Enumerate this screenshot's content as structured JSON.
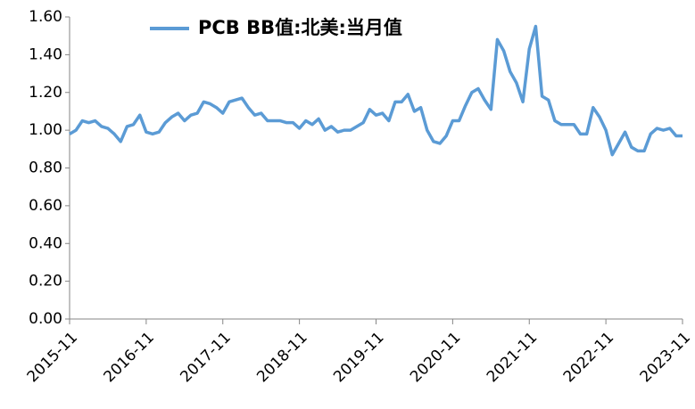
{
  "chart_data": {
    "type": "line",
    "categories": [
      "2015-11",
      null,
      null,
      null,
      null,
      null,
      null,
      null,
      null,
      null,
      null,
      null,
      "2016-11",
      null,
      null,
      null,
      null,
      null,
      null,
      null,
      null,
      null,
      null,
      null,
      "2017-11",
      null,
      null,
      null,
      null,
      null,
      null,
      null,
      null,
      null,
      null,
      null,
      "2018-11",
      null,
      null,
      null,
      null,
      null,
      null,
      null,
      null,
      null,
      null,
      null,
      "2019-11",
      null,
      null,
      null,
      null,
      null,
      null,
      null,
      null,
      null,
      null,
      null,
      "2020-11",
      null,
      null,
      null,
      null,
      null,
      null,
      null,
      null,
      null,
      null,
      null,
      "2021-11",
      null,
      null,
      null,
      null,
      null,
      null,
      null,
      null,
      null,
      null,
      null,
      "2022-11",
      null,
      null,
      null,
      null,
      null,
      null,
      null,
      null,
      null,
      null,
      null,
      "2023-11"
    ],
    "series": [
      {
        "name": "PCB BB值:北美:当月值",
        "color": "#5b9bd5",
        "values": [
          0.98,
          1.0,
          1.05,
          1.04,
          1.05,
          1.02,
          1.01,
          0.98,
          0.94,
          1.02,
          1.03,
          1.08,
          0.99,
          0.98,
          0.99,
          1.04,
          1.07,
          1.09,
          1.05,
          1.08,
          1.09,
          1.15,
          1.14,
          1.12,
          1.09,
          1.15,
          1.16,
          1.17,
          1.12,
          1.08,
          1.09,
          1.05,
          1.05,
          1.05,
          1.04,
          1.04,
          1.01,
          1.05,
          1.03,
          1.06,
          1.0,
          1.02,
          0.99,
          1.0,
          1.0,
          1.02,
          1.04,
          1.11,
          1.08,
          1.09,
          1.05,
          1.15,
          1.15,
          1.19,
          1.1,
          1.12,
          1.0,
          0.94,
          0.93,
          0.97,
          1.05,
          1.05,
          1.13,
          1.2,
          1.22,
          1.16,
          1.11,
          1.48,
          1.42,
          1.31,
          1.25,
          1.15,
          1.43,
          1.55,
          1.18,
          1.16,
          1.05,
          1.03,
          1.03,
          1.03,
          0.98,
          0.98,
          1.12,
          1.07,
          1.0,
          0.87,
          0.93,
          0.99,
          0.91,
          0.89,
          0.89,
          0.98,
          1.01,
          1.0,
          1.01,
          0.97,
          0.97
        ]
      }
    ],
    "ylim": [
      0,
      1.6
    ],
    "yticks": [
      {
        "value": 0,
        "label": "0.00"
      },
      {
        "value": 0.2,
        "label": "0.20"
      },
      {
        "value": 0.4,
        "label": "0.40"
      },
      {
        "value": 0.6,
        "label": "0.60"
      },
      {
        "value": 0.8,
        "label": "0.80"
      },
      {
        "value": 1,
        "label": "1.00"
      },
      {
        "value": 1.2,
        "label": "1.20"
      },
      {
        "value": 1.4,
        "label": "1.40"
      },
      {
        "value": 1.6,
        "label": "1.60"
      }
    ],
    "grid": false
  }
}
